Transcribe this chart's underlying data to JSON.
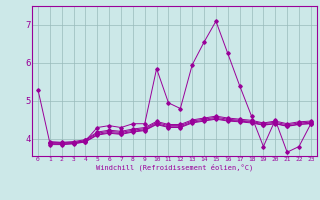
{
  "xlabel": "Windchill (Refroidissement éolien,°C)",
  "background_color": "#cce8e8",
  "line_color": "#990099",
  "grid_color": "#99bbbb",
  "xlim": [
    -0.5,
    23.5
  ],
  "ylim": [
    3.55,
    7.5
  ],
  "yticks": [
    4,
    5,
    6,
    7
  ],
  "xticks": [
    0,
    1,
    2,
    3,
    4,
    5,
    6,
    7,
    8,
    9,
    10,
    11,
    12,
    13,
    14,
    15,
    16,
    17,
    18,
    19,
    20,
    21,
    22,
    23
  ],
  "series": [
    [
      5.3,
      3.9,
      3.9,
      3.9,
      3.95,
      4.3,
      4.35,
      4.3,
      4.4,
      4.4,
      5.85,
      4.95,
      4.8,
      5.95,
      6.55,
      7.1,
      6.25,
      5.4,
      4.6,
      3.8,
      4.5,
      3.65,
      3.8,
      4.4
    ],
    [
      null,
      3.85,
      3.85,
      3.87,
      3.92,
      4.1,
      4.15,
      4.12,
      4.18,
      4.22,
      4.38,
      4.3,
      4.3,
      4.42,
      4.47,
      4.52,
      4.47,
      4.45,
      4.42,
      4.36,
      4.4,
      4.33,
      4.38,
      4.4
    ],
    [
      null,
      3.9,
      3.88,
      3.9,
      3.96,
      4.15,
      4.2,
      4.17,
      4.23,
      4.27,
      4.43,
      4.35,
      4.35,
      4.47,
      4.52,
      4.57,
      4.52,
      4.49,
      4.46,
      4.4,
      4.44,
      4.37,
      4.42,
      4.44
    ],
    [
      null,
      3.93,
      3.91,
      3.93,
      3.98,
      4.18,
      4.23,
      4.2,
      4.26,
      4.3,
      4.46,
      4.38,
      4.38,
      4.5,
      4.55,
      4.6,
      4.55,
      4.52,
      4.49,
      4.42,
      4.47,
      4.4,
      4.45,
      4.47
    ],
    [
      null,
      3.88,
      3.86,
      3.88,
      3.93,
      4.12,
      4.17,
      4.14,
      4.2,
      4.24,
      4.4,
      4.32,
      4.32,
      4.44,
      4.49,
      4.54,
      4.49,
      4.47,
      4.44,
      4.37,
      4.41,
      4.34,
      4.39,
      4.41
    ]
  ]
}
